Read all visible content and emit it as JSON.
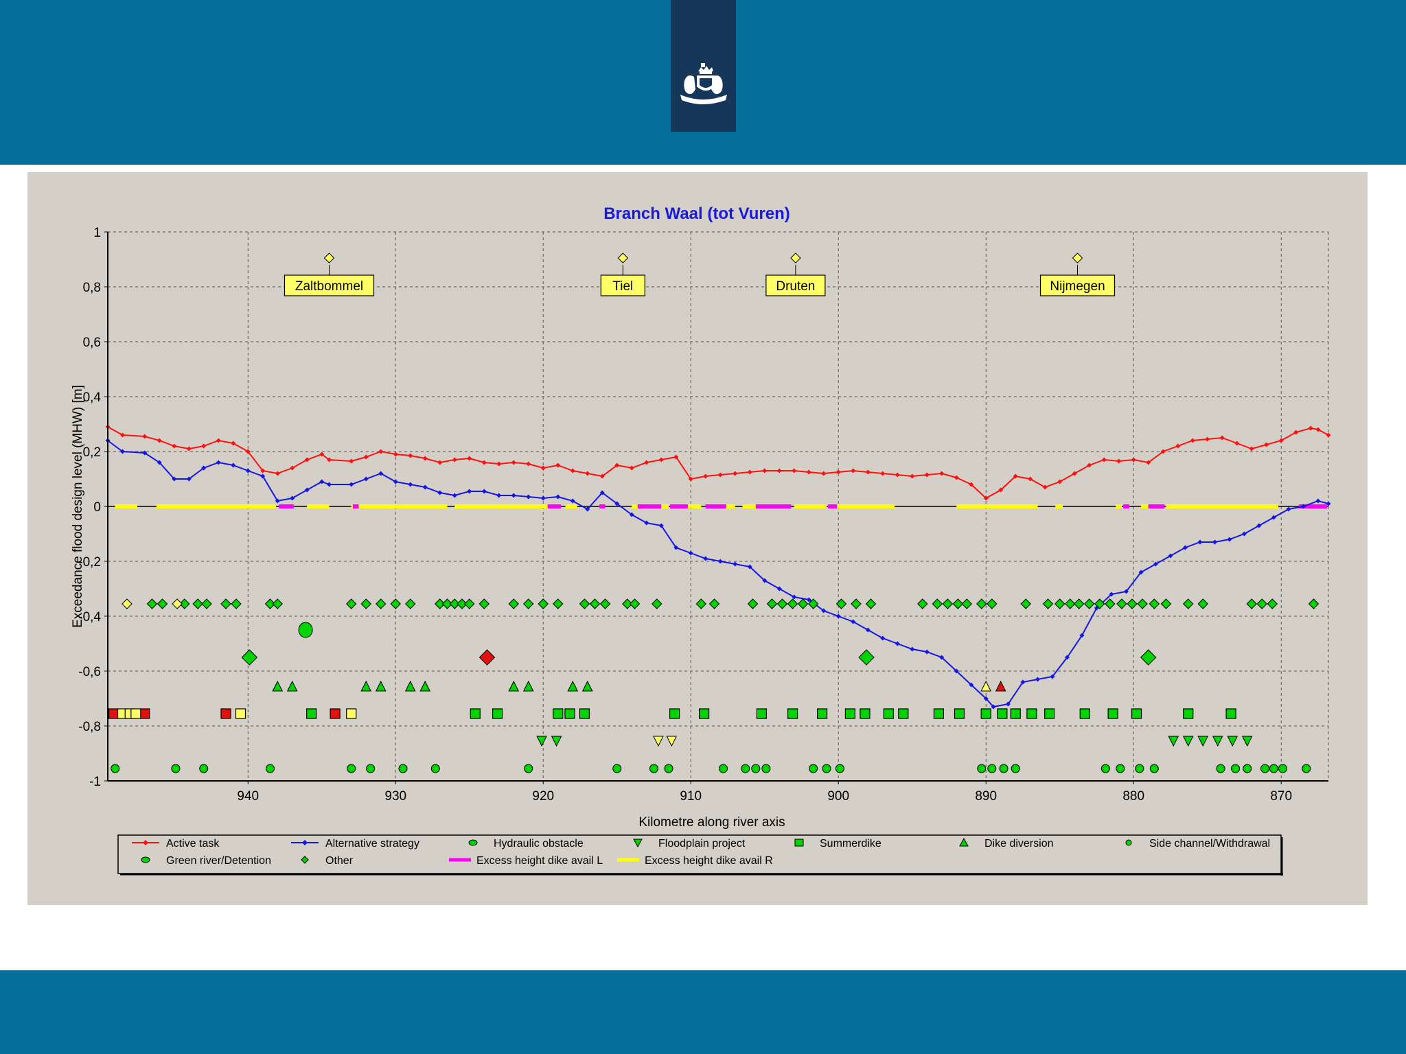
{
  "chart_data": {
    "type": "line",
    "title": "Branch Waal (tot Vuren)",
    "xlabel": "Kilometre along river axis",
    "ylabel": "Exceedance flood design level (MHW) [m]",
    "xlim": [
      949.5,
      866.8
    ],
    "ylim": [
      -1,
      1
    ],
    "x_ticks": [
      940,
      930,
      920,
      910,
      900,
      890,
      880,
      870
    ],
    "y_ticks": [
      1,
      0.8,
      0.6,
      0.4,
      0.2,
      0,
      -0.2,
      -0.4,
      -0.6,
      -0.8,
      -1
    ],
    "y_tick_labels": [
      "1",
      "0,8",
      "0,6",
      "0,4",
      "0,2",
      "0",
      "-0,2",
      "-0,4",
      "-0,6",
      "-0,8",
      "-1"
    ],
    "grid": true,
    "colors": {
      "active": "#ff1010",
      "alternative": "#1515e8",
      "magenta": "#ff00ff",
      "yellow": "#ffff00",
      "green": "#00d400",
      "red": "#e31010",
      "lightyellow": "#ffff66"
    },
    "cities": [
      {
        "name": "Zaltbommel",
        "km": 934.5
      },
      {
        "name": "Tiel",
        "km": 914.6
      },
      {
        "name": "Druten",
        "km": 902.9
      },
      {
        "name": "Nijmegen",
        "km": 883.8
      }
    ],
    "series": [
      {
        "name": "Active task",
        "points": [
          [
            949.5,
            0.29
          ],
          [
            948.5,
            0.26
          ],
          [
            947,
            0.255
          ],
          [
            946,
            0.24
          ],
          [
            945,
            0.22
          ],
          [
            944,
            0.21
          ],
          [
            943,
            0.22
          ],
          [
            942,
            0.24
          ],
          [
            941,
            0.23
          ],
          [
            940,
            0.2
          ],
          [
            939,
            0.13
          ],
          [
            938,
            0.12
          ],
          [
            937,
            0.14
          ],
          [
            936,
            0.17
          ],
          [
            935,
            0.19
          ],
          [
            934.5,
            0.17
          ],
          [
            933,
            0.165
          ],
          [
            932,
            0.18
          ],
          [
            931,
            0.2
          ],
          [
            930,
            0.19
          ],
          [
            929,
            0.185
          ],
          [
            928,
            0.175
          ],
          [
            927,
            0.16
          ],
          [
            926,
            0.17
          ],
          [
            925,
            0.175
          ],
          [
            924,
            0.16
          ],
          [
            923,
            0.155
          ],
          [
            922,
            0.16
          ],
          [
            921,
            0.155
          ],
          [
            920,
            0.14
          ],
          [
            919,
            0.15
          ],
          [
            918,
            0.13
          ],
          [
            917,
            0.12
          ],
          [
            916,
            0.11
          ],
          [
            915,
            0.15
          ],
          [
            914,
            0.14
          ],
          [
            913,
            0.16
          ],
          [
            912,
            0.17
          ],
          [
            911,
            0.18
          ],
          [
            910,
            0.1
          ],
          [
            909,
            0.11
          ],
          [
            908,
            0.115
          ],
          [
            907,
            0.12
          ],
          [
            906,
            0.125
          ],
          [
            905,
            0.13
          ],
          [
            904,
            0.13
          ],
          [
            903,
            0.13
          ],
          [
            902,
            0.125
          ],
          [
            901,
            0.12
          ],
          [
            900,
            0.125
          ],
          [
            899,
            0.13
          ],
          [
            898,
            0.125
          ],
          [
            897,
            0.12
          ],
          [
            896,
            0.115
          ],
          [
            895,
            0.11
          ],
          [
            894,
            0.115
          ],
          [
            893,
            0.12
          ],
          [
            892,
            0.105
          ],
          [
            891,
            0.08
          ],
          [
            890,
            0.03
          ],
          [
            889,
            0.06
          ],
          [
            888,
            0.11
          ],
          [
            887,
            0.1
          ],
          [
            886,
            0.07
          ],
          [
            885,
            0.09
          ],
          [
            884,
            0.12
          ],
          [
            883,
            0.15
          ],
          [
            882,
            0.17
          ],
          [
            881,
            0.165
          ],
          [
            880,
            0.17
          ],
          [
            879,
            0.16
          ],
          [
            878,
            0.2
          ],
          [
            877,
            0.22
          ],
          [
            876,
            0.24
          ],
          [
            875,
            0.245
          ],
          [
            874,
            0.25
          ],
          [
            873,
            0.23
          ],
          [
            872,
            0.21
          ],
          [
            871,
            0.225
          ],
          [
            870,
            0.24
          ],
          [
            869,
            0.27
          ],
          [
            868,
            0.285
          ],
          [
            867.5,
            0.28
          ],
          [
            866.8,
            0.26
          ]
        ]
      },
      {
        "name": "Alternative strategy",
        "points": [
          [
            949.5,
            0.24
          ],
          [
            948.5,
            0.2
          ],
          [
            947,
            0.195
          ],
          [
            946,
            0.16
          ],
          [
            945,
            0.1
          ],
          [
            944,
            0.1
          ],
          [
            943,
            0.14
          ],
          [
            942,
            0.16
          ],
          [
            941,
            0.15
          ],
          [
            940,
            0.13
          ],
          [
            939,
            0.11
          ],
          [
            938,
            0.02
          ],
          [
            937,
            0.03
          ],
          [
            936,
            0.06
          ],
          [
            935,
            0.09
          ],
          [
            934.5,
            0.08
          ],
          [
            933,
            0.08
          ],
          [
            932,
            0.1
          ],
          [
            931,
            0.12
          ],
          [
            930,
            0.09
          ],
          [
            929,
            0.08
          ],
          [
            928,
            0.07
          ],
          [
            927,
            0.05
          ],
          [
            926,
            0.04
          ],
          [
            925,
            0.055
          ],
          [
            924,
            0.055
          ],
          [
            923,
            0.04
          ],
          [
            922,
            0.04
          ],
          [
            921,
            0.035
          ],
          [
            920,
            0.03
          ],
          [
            919,
            0.035
          ],
          [
            918,
            0.02
          ],
          [
            917,
            -0.01
          ],
          [
            916,
            0.05
          ],
          [
            915,
            0.01
          ],
          [
            914,
            -0.03
          ],
          [
            913,
            -0.06
          ],
          [
            912,
            -0.07
          ],
          [
            911,
            -0.15
          ],
          [
            910,
            -0.17
          ],
          [
            909,
            -0.19
          ],
          [
            908,
            -0.2
          ],
          [
            907,
            -0.21
          ],
          [
            906,
            -0.22
          ],
          [
            905,
            -0.27
          ],
          [
            904,
            -0.3
          ],
          [
            903,
            -0.33
          ],
          [
            902,
            -0.34
          ],
          [
            901,
            -0.38
          ],
          [
            900,
            -0.4
          ],
          [
            899,
            -0.42
          ],
          [
            898,
            -0.45
          ],
          [
            897,
            -0.48
          ],
          [
            896,
            -0.5
          ],
          [
            895,
            -0.52
          ],
          [
            894,
            -0.53
          ],
          [
            893,
            -0.55
          ],
          [
            892,
            -0.6
          ],
          [
            891,
            -0.65
          ],
          [
            890,
            -0.7
          ],
          [
            889.5,
            -0.73
          ],
          [
            888.5,
            -0.72
          ],
          [
            887.5,
            -0.64
          ],
          [
            886.5,
            -0.63
          ],
          [
            885.5,
            -0.62
          ],
          [
            884.5,
            -0.55
          ],
          [
            883.5,
            -0.47
          ],
          [
            882.5,
            -0.37
          ],
          [
            881.5,
            -0.32
          ],
          [
            880.5,
            -0.31
          ],
          [
            879.5,
            -0.24
          ],
          [
            878.5,
            -0.21
          ],
          [
            877.5,
            -0.18
          ],
          [
            876.5,
            -0.15
          ],
          [
            875.5,
            -0.13
          ],
          [
            874.5,
            -0.13
          ],
          [
            873.5,
            -0.12
          ],
          [
            872.5,
            -0.1
          ],
          [
            871.5,
            -0.07
          ],
          [
            870.5,
            -0.04
          ],
          [
            869.5,
            -0.01
          ],
          [
            868.5,
            0.0
          ],
          [
            867.5,
            0.02
          ],
          [
            866.8,
            0.01
          ]
        ]
      }
    ],
    "excess_height_R": [
      [
        949,
        947.5
      ],
      [
        946.2,
        938.1
      ],
      [
        936,
        934.5
      ],
      [
        933,
        926.5
      ],
      [
        926,
        919.5
      ],
      [
        918.5,
        917.7
      ],
      [
        916.2,
        915.8
      ],
      [
        914,
        913.6
      ],
      [
        912.2,
        911.5
      ],
      [
        910.8,
        909.3
      ],
      [
        908,
        907
      ],
      [
        906.5,
        904.3
      ],
      [
        903,
        900.8
      ],
      [
        900.5,
        896.2
      ],
      [
        892,
        886.5
      ],
      [
        885.3,
        884.8
      ],
      [
        881.2,
        880.8
      ],
      [
        879.5,
        879
      ],
      [
        877.8,
        870.2
      ]
    ],
    "excess_height_L": [
      [
        937.9,
        936.9
      ],
      [
        932.9,
        932.5
      ],
      [
        919.7,
        918.8
      ],
      [
        916.2,
        915.8
      ],
      [
        913.6,
        912
      ],
      [
        911.4,
        910.2
      ],
      [
        909,
        907.6
      ],
      [
        905.6,
        903.2
      ],
      [
        900.7,
        900.1
      ],
      [
        880.7,
        880.3
      ],
      [
        879,
        877.9
      ],
      [
        868.8,
        866.9
      ]
    ],
    "markers": {
      "other_diamonds_green": [
        946.5,
        945.8,
        944.3,
        943.4,
        942.8,
        941.5,
        940.8,
        938.5,
        938,
        933,
        932,
        931,
        930,
        929,
        927,
        926.5,
        926,
        925.5,
        925,
        924,
        922,
        921,
        920,
        919,
        917.2,
        916.5,
        915.8,
        914.3,
        913.8,
        912.3,
        909.3,
        908.4,
        905.8,
        904.5,
        903.8,
        903.1,
        902.4,
        901.7,
        899.8,
        898.8,
        897.8,
        894.3,
        893.3,
        892.6,
        891.9,
        891.3,
        890.3,
        889.6,
        887.3,
        885.8,
        885,
        884.3,
        883.7,
        883,
        882.3,
        881.6,
        880.8,
        880.1,
        879.4,
        878.6,
        877.8,
        876.3,
        875.3,
        872,
        871.3,
        870.6,
        867.8
      ],
      "other_diamonds_yellow": [
        948.2,
        944.8
      ],
      "big_diamonds_green": [
        [
          939.9,
          -0.55
        ],
        [
          898.1,
          -0.55
        ],
        [
          879,
          -0.55
        ]
      ],
      "big_diamonds_red": [
        [
          923.8,
          -0.55
        ]
      ],
      "hydraulic_obstacle": [
        [
          936.1,
          -0.45
        ]
      ],
      "dike_diversion": [
        938,
        937,
        932,
        931,
        929,
        928,
        922,
        921,
        918,
        917
      ],
      "summerdike_green": [
        935.7,
        924.6,
        923.1,
        919,
        918.2,
        917.2,
        911.1,
        909.1,
        905.2,
        903.1,
        901.1,
        899.2,
        898.2,
        896.6,
        895.6,
        893.2,
        891.8,
        890,
        888.9,
        888,
        886.9,
        885.7,
        883.3,
        881.4,
        879.8,
        876.3,
        873.4
      ],
      "summerdike_red": [
        949.1,
        947,
        941.5,
        934.1
      ],
      "summerdike_yellow": [
        948.5,
        948,
        947.6,
        940.5,
        933
      ],
      "floodplain_green": [
        920.1,
        919.1,
        877.3,
        876.3,
        875.3,
        874.3,
        873.3,
        872.3
      ],
      "floodplain_yellow": [
        912.2,
        911.3
      ],
      "triangle_yellow": [
        890
      ],
      "triangle_red": [
        889
      ],
      "side_channel": [
        949,
        944.9,
        943,
        938.5,
        933,
        931.7,
        929.5,
        927.3,
        921,
        915,
        912.5,
        911.5,
        907.8,
        906.3,
        905.6,
        904.9,
        901.7,
        900.8,
        899.9,
        890.3,
        889.6,
        888.8,
        888,
        881.9,
        880.9,
        879.6,
        878.6,
        874.1,
        873.1,
        872.3,
        871.1,
        870.5,
        869.9,
        868.3
      ]
    },
    "legend": [
      "Active task",
      "Alternative strategy",
      "Hydraulic obstacle",
      "Floodplain project",
      "Summerdike",
      "Dike diversion",
      "Side channel/Withdrawal",
      "Green river/Detention",
      "Other",
      "Excess height dike avail L",
      "Excess height dike avail R"
    ]
  }
}
